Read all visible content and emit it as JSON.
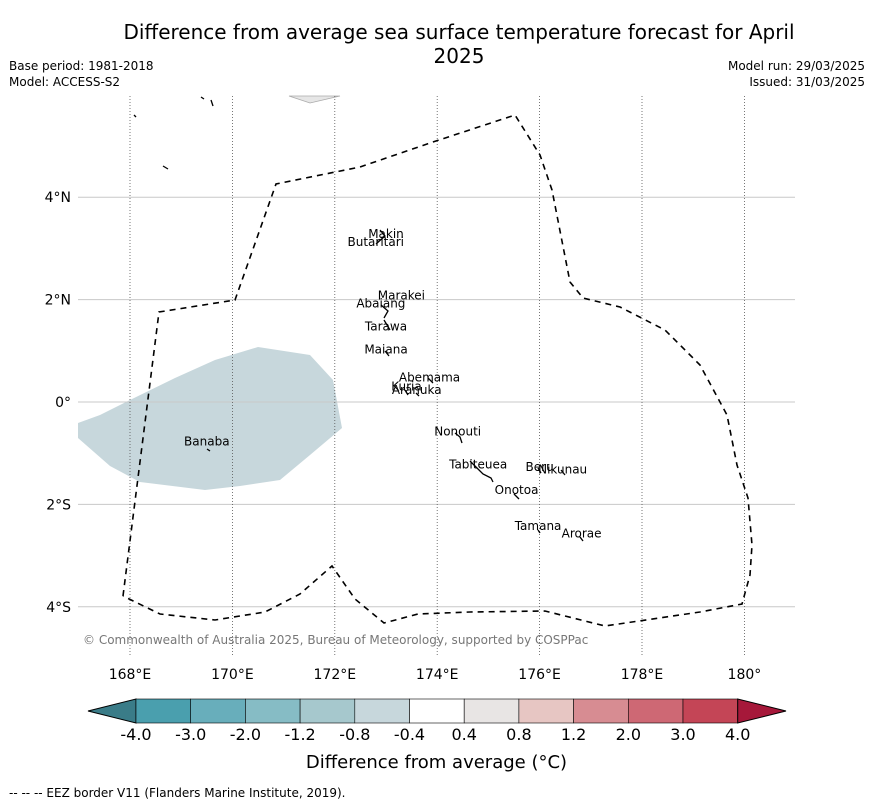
{
  "title": "Difference from average sea surface temperature forecast for April 2025",
  "meta_left": [
    "Base period: 1981-2018",
    "Model: ACCESS-S2"
  ],
  "meta_right": [
    "Model run: 29/03/2025",
    "Issued: 31/03/2025"
  ],
  "lat_ticks": [
    "4°N",
    "2°N",
    "0°",
    "2°S",
    "4°S"
  ],
  "lon_ticks": [
    "168°E",
    "170°E",
    "172°E",
    "174°E",
    "176°E",
    "178°E",
    "180°"
  ],
  "copyright": "© Commonwealth of Australia 2025, Bureau of Meteorology, supported by COSPPac",
  "islands": [
    {
      "name": "Makin",
      "lon": 173.0,
      "lat": 3.2
    },
    {
      "name": "Butaritari",
      "lon": 172.8,
      "lat": 3.05
    },
    {
      "name": "Marakei",
      "lon": 173.3,
      "lat": 2.0
    },
    {
      "name": "Abaiang",
      "lon": 172.9,
      "lat": 1.85
    },
    {
      "name": "Tarawa",
      "lon": 173.0,
      "lat": 1.4
    },
    {
      "name": "Maiana",
      "lon": 173.0,
      "lat": 0.95
    },
    {
      "name": "Abemama",
      "lon": 173.85,
      "lat": 0.4
    },
    {
      "name": "Kuria",
      "lon": 173.4,
      "lat": 0.22
    },
    {
      "name": "Aranuka",
      "lon": 173.6,
      "lat": 0.16
    },
    {
      "name": "Nonouti",
      "lon": 174.4,
      "lat": -0.65
    },
    {
      "name": "Banaba",
      "lon": 169.5,
      "lat": -0.85
    },
    {
      "name": "Beru",
      "lon": 176.0,
      "lat": -1.35
    },
    {
      "name": "Nikunau",
      "lon": 176.45,
      "lat": -1.4
    },
    {
      "name": "Tabiteuea",
      "lon": 174.8,
      "lat": -1.3
    },
    {
      "name": "Onotoa",
      "lon": 175.55,
      "lat": -1.8
    },
    {
      "name": "Tamana",
      "lon": 175.97,
      "lat": -2.5
    },
    {
      "name": "Arorae",
      "lon": 176.82,
      "lat": -2.65
    }
  ],
  "colorbar": {
    "ticks": [
      "-4.0",
      "-3.0",
      "-2.0",
      "-1.2",
      "-0.8",
      "-0.4",
      "0.4",
      "0.8",
      "1.2",
      "2.0",
      "3.0",
      "4.0"
    ],
    "colors": [
      "#4a9fae",
      "#68aebb",
      "#86bcc5",
      "#a6c8cd",
      "#c7d7dc",
      "#ffffff",
      "#e8e5e4",
      "#e7c6c3",
      "#d78c92",
      "#ce6874",
      "#c44556"
    ],
    "under_color": "#3a7c88",
    "over_color": "#a6183a",
    "label": "Difference from average (°C)"
  },
  "legend_eez": "-- -- -- EEZ border V11 (Flanders Marine Institute, 2019)."
}
